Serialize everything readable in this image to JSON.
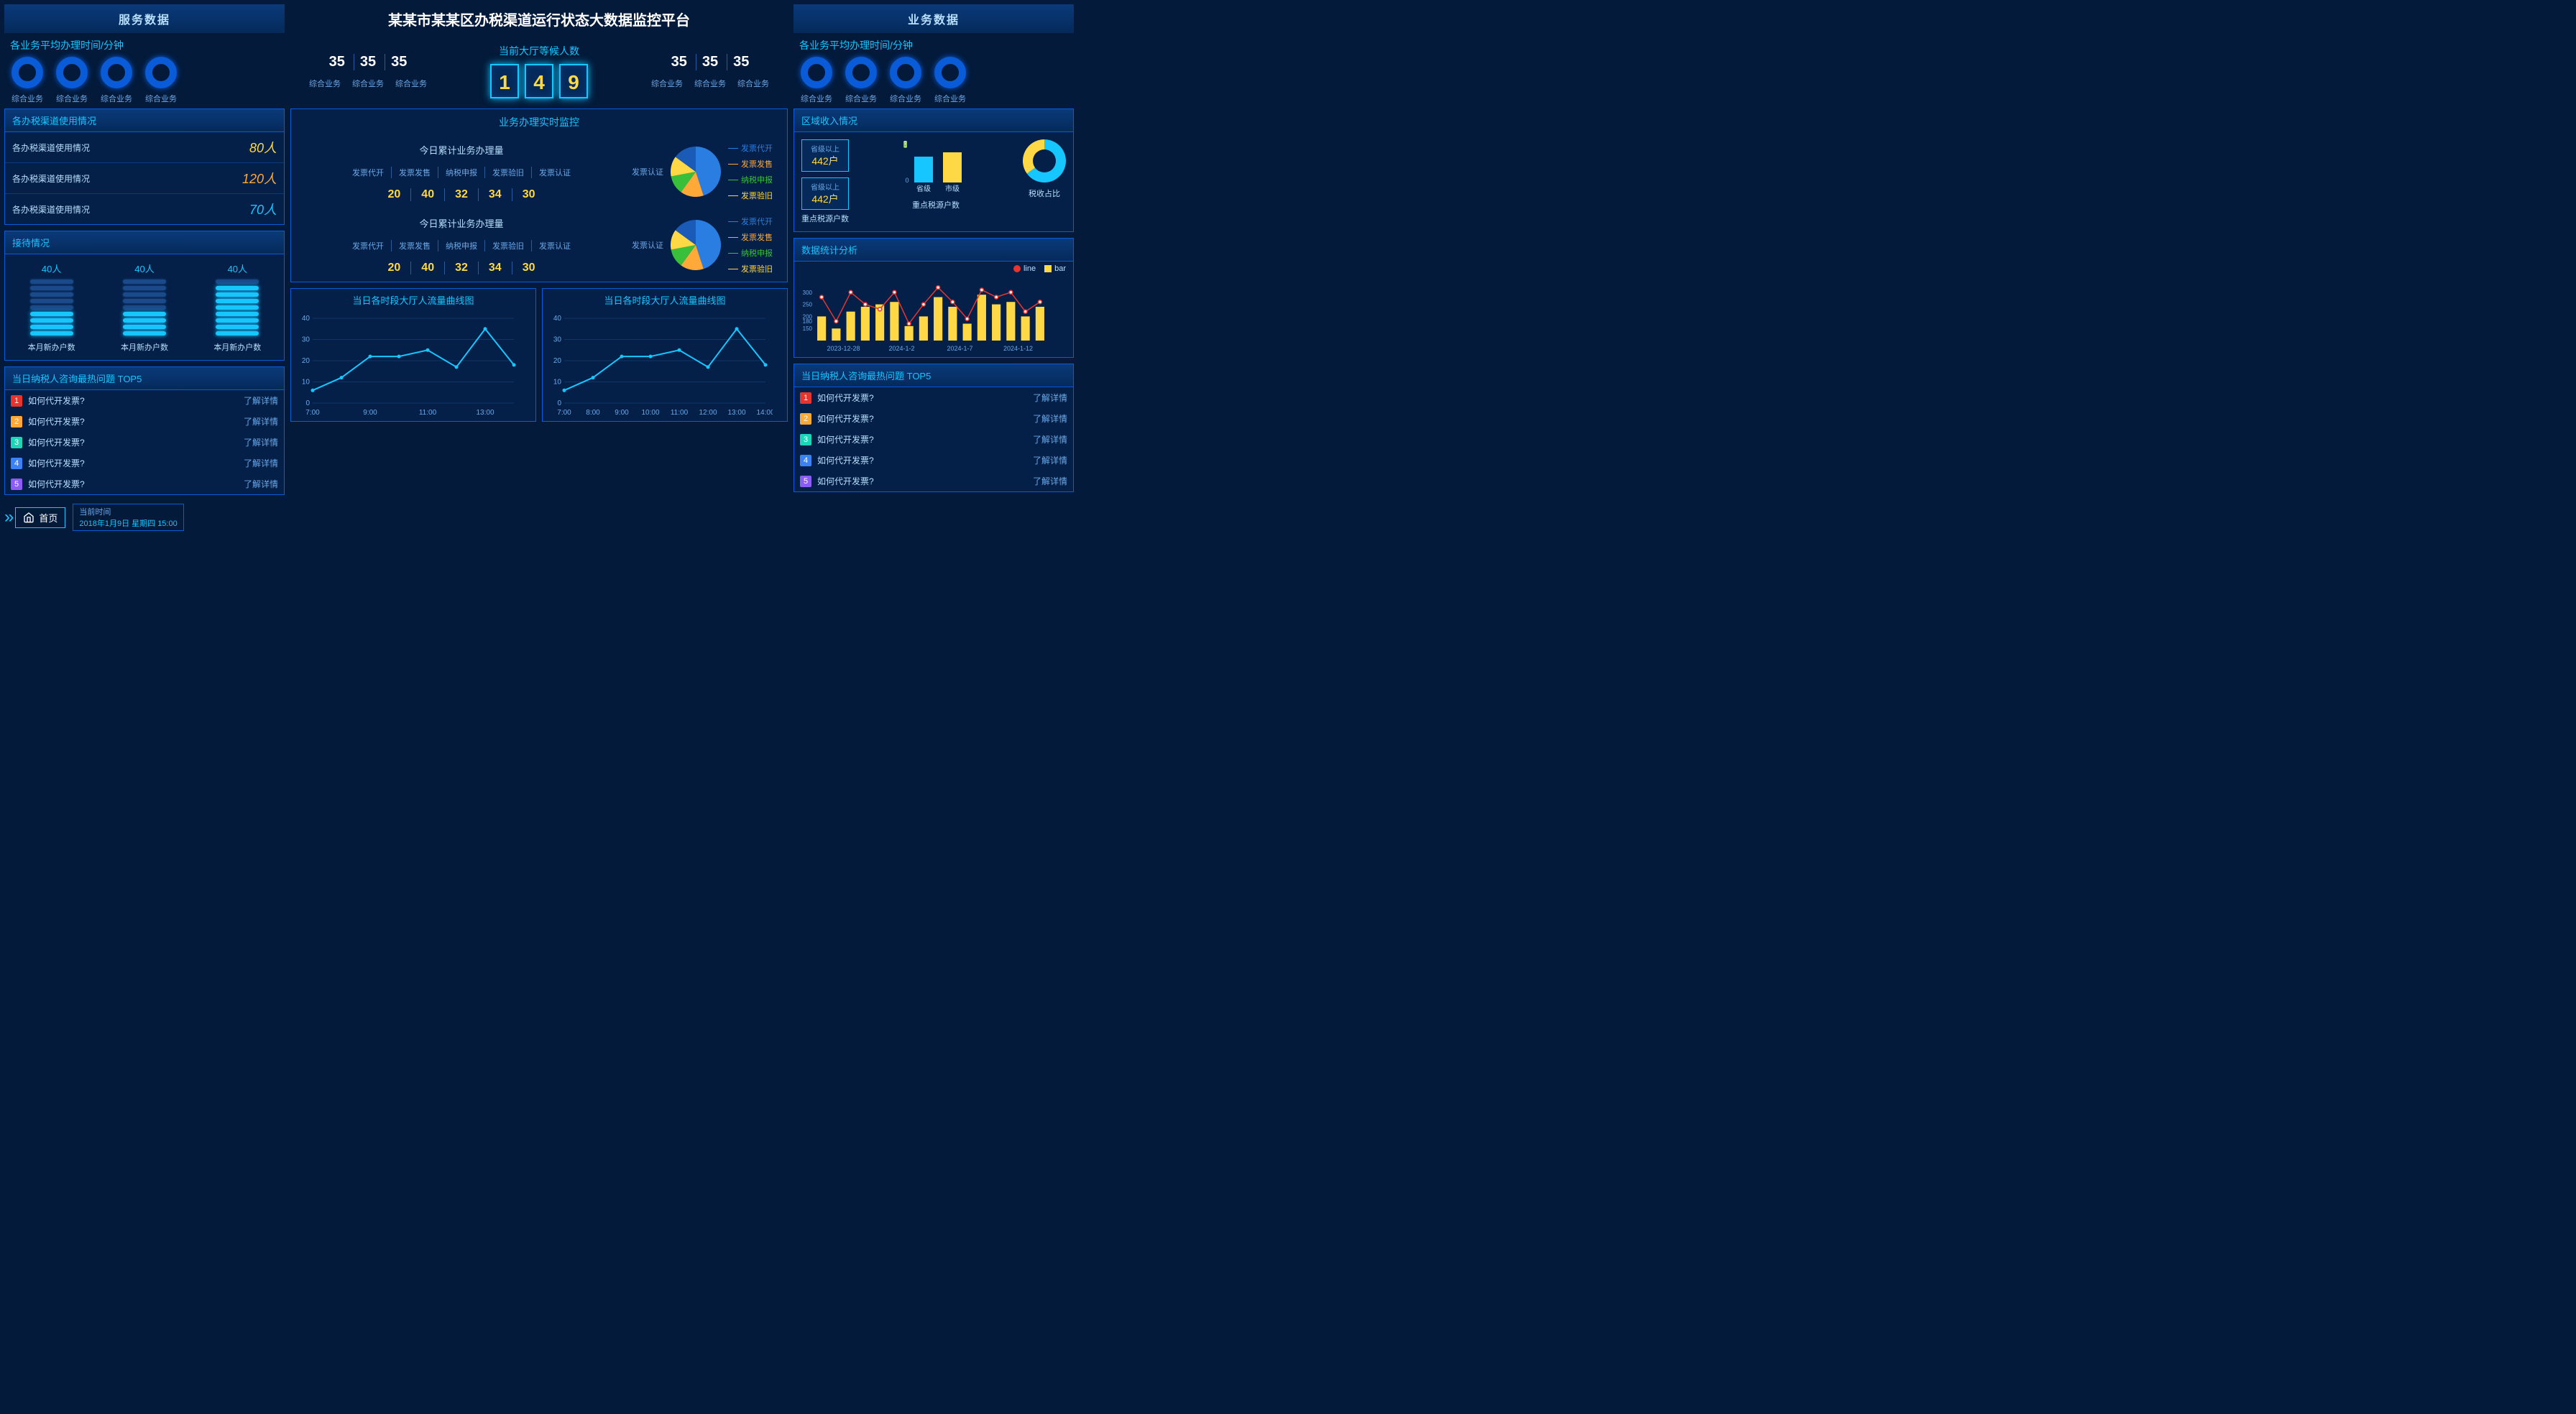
{
  "title": "某某市某某区办税渠道运行状态大数据监控平台",
  "header": {
    "left": "服务数据",
    "right": "业务数据"
  },
  "avg_time": {
    "title": "各业务平均办理时间/分钟",
    "items": [
      "综合业务",
      "综合业务",
      "综合业务",
      "综合业务"
    ]
  },
  "stats_center": {
    "left_nums": [
      "35",
      "35",
      "35"
    ],
    "left_labels": [
      "综合业务",
      "综合业务",
      "综合业务"
    ],
    "waiting_title": "当前大厅等候人数",
    "waiting_digits": [
      "1",
      "4",
      "9"
    ],
    "right_nums": [
      "35",
      "35",
      "35"
    ],
    "right_labels": [
      "综合业务",
      "综合业务",
      "综合业务"
    ]
  },
  "channel_usage": {
    "title": "各办税渠道使用情况",
    "rows": [
      {
        "label": "各办税渠道使用情况",
        "value": "80人",
        "color": "#ffd845"
      },
      {
        "label": "各办税渠道使用情况",
        "value": "120人",
        "color": "#ffa938"
      },
      {
        "label": "各办税渠道使用情况",
        "value": "70人",
        "color": "#16c6ff"
      }
    ]
  },
  "reception": {
    "title": "接待情况",
    "cols": [
      {
        "value": "40人",
        "lit": 4,
        "total": 9,
        "label": "本月新办户数"
      },
      {
        "value": "40人",
        "lit": 4,
        "total": 9,
        "label": "本月新办户数"
      },
      {
        "value": "40人",
        "lit": 8,
        "total": 9,
        "label": "本月新办户数"
      }
    ]
  },
  "top5": {
    "title": "当日纳税人咨询最热问题 TOP5",
    "link_text": "了解详情",
    "items": [
      "如何代开发票?",
      "如何代开发票?",
      "如何代开发票?",
      "如何代开发票?",
      "如何代开发票?"
    ]
  },
  "realtime": {
    "title": "业务办理实时监控",
    "blocks": [
      {
        "sub": "今日累计业务办理量",
        "heads": [
          "发票代开",
          "发票发售",
          "纳税申报",
          "发票验旧",
          "发票认证"
        ],
        "vals": [
          "20",
          "40",
          "32",
          "34",
          "30"
        ]
      },
      {
        "sub": "今日累计业务办理量",
        "heads": [
          "发票代开",
          "发票发售",
          "纳税申报",
          "发票验旧",
          "发票认证"
        ],
        "vals": [
          "20",
          "40",
          "32",
          "34",
          "30"
        ]
      }
    ],
    "pie": {
      "side_label": "发票认证",
      "slices": [
        {
          "label": "发票代开",
          "value": 45,
          "color": "#2a7de1"
        },
        {
          "label": "发票发售",
          "value": 15,
          "color": "#ffa938"
        },
        {
          "label": "纳税申报",
          "value": 12,
          "color": "#3abf3a"
        },
        {
          "label": "发票验旧",
          "value": 13,
          "color": "#ffd845"
        },
        {
          "label": "发票认证",
          "value": 15,
          "color": "#1a5bb8"
        }
      ]
    }
  },
  "line_chart": {
    "title": "当日各时段大厅人流量曲线图",
    "x": [
      "7:00",
      "8:00",
      "9:00",
      "10:00",
      "11:00",
      "12:00",
      "13:00",
      "14:00"
    ],
    "y_ticks": [
      0,
      10,
      20,
      30,
      40
    ],
    "values": [
      6,
      12,
      22,
      22,
      25,
      17,
      35,
      18
    ],
    "color": "#16c6ff"
  },
  "region_income": {
    "title": "区域收入情况",
    "boxes": [
      {
        "t": "省级以上",
        "v": "442户"
      },
      {
        "t": "省级以上",
        "v": "442户"
      }
    ],
    "box_label": "重点税源户数",
    "bar_chart": {
      "labels": [
        "省级",
        "市级"
      ],
      "values": [
        12,
        14
      ],
      "colors": [
        "#16c6ff",
        "#ffd845"
      ],
      "title": "重点税源户数"
    },
    "donut": {
      "title": "税收占比",
      "slices": [
        {
          "value": 65,
          "color": "#16c6ff"
        },
        {
          "value": 35,
          "color": "#ffd845"
        }
      ]
    }
  },
  "combo": {
    "title": "数据统计分析",
    "legend": {
      "line": "line",
      "bar": "bar"
    },
    "x": [
      "2023-12-28",
      "2024-1-2",
      "2024-1-7",
      "2024-1-12"
    ],
    "y_ticks": [
      "150",
      "180",
      "200",
      "250",
      "300"
    ],
    "bar_values": [
      200,
      150,
      220,
      240,
      250,
      260,
      160,
      200,
      280,
      240,
      170,
      290,
      250,
      260,
      200,
      240
    ],
    "line_values": [
      280,
      180,
      300,
      250,
      230,
      300,
      170,
      250,
      320,
      260,
      190,
      310,
      280,
      300,
      220,
      260
    ],
    "bar_color": "#ffd845",
    "line_color": "#e8342e"
  },
  "footer": {
    "home": "首页",
    "clock_label": "当前时间",
    "clock_value": "2018年1月9日 星期四 15:00"
  }
}
